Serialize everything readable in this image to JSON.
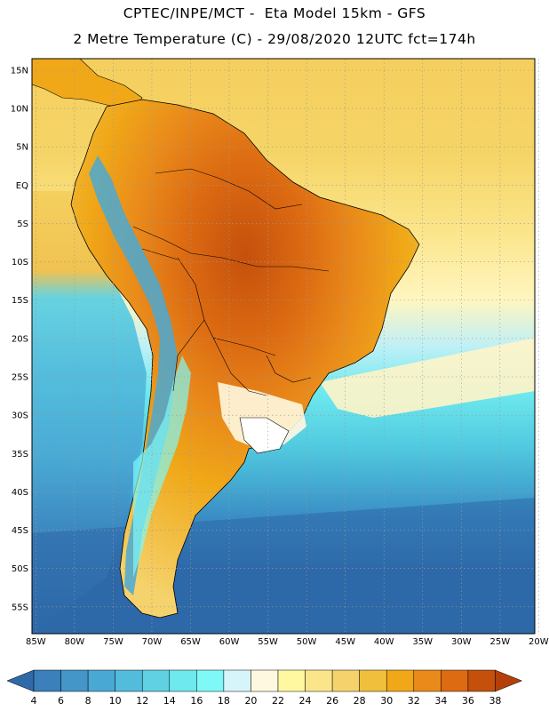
{
  "header": {
    "line1": "CPTEC/INPE/MCT -  Eta Model 15km - GFS",
    "line2": "2 Metre Temperature (C) - 29/08/2020 12UTC fct=174h"
  },
  "map": {
    "region": "South America",
    "variable": "2 Metre Temperature",
    "units": "C",
    "lat_labels": [
      "15N",
      "10N",
      "5N",
      "EQ",
      "5S",
      "10S",
      "15S",
      "20S",
      "25S",
      "30S",
      "35S",
      "40S",
      "45S",
      "50S",
      "55S"
    ],
    "lon_labels": [
      "85W",
      "80W",
      "75W",
      "70W",
      "65W",
      "60W",
      "55W",
      "50W",
      "45W",
      "40W",
      "35W",
      "30W",
      "25W",
      "20W"
    ],
    "lat_range": [
      16.5,
      -58.5
    ],
    "lon_range": [
      -85.5,
      -20.5
    ]
  },
  "colorbar": {
    "labels": [
      "4",
      "6",
      "8",
      "10",
      "12",
      "14",
      "16",
      "18",
      "20",
      "22",
      "24",
      "26",
      "28",
      "30",
      "32",
      "34",
      "36",
      "38"
    ],
    "colors": [
      "#2f6aa8",
      "#3b7fbb",
      "#4495c8",
      "#4aa9d4",
      "#52bcdc",
      "#5fd1e2",
      "#6ee9ee",
      "#7ff8f8",
      "#d5f5fb",
      "#fff8e0",
      "#fff8a0",
      "#fbe58a",
      "#f5d26b",
      "#f0bf3c",
      "#f0a818",
      "#e98a1a",
      "#dc6b12",
      "#c5500c",
      "#b3400a"
    ]
  },
  "palette": {
    "ocean_north": "#f3cb5a",
    "ocean_mid": "#4fcde0",
    "ocean_south": "#2d68a8"
  }
}
